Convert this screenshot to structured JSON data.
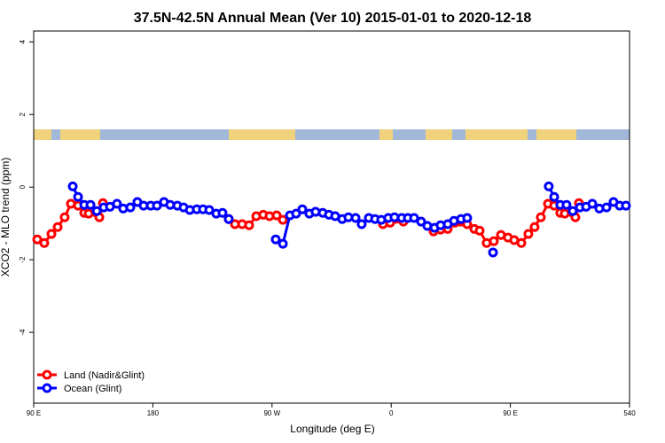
{
  "chart_data": {
    "type": "line",
    "title": "37.5N-42.5N Annual Mean (Ver 10)   2015-01-01 to 2020-12-18",
    "x_label": "Longitude (deg E)",
    "y_label": "XCO2 - MLO trend (ppm)",
    "xlim": [
      90,
      540
    ],
    "ylim": [
      -5.95,
      4.3
    ],
    "xticks": [
      {
        "value": 90,
        "label": "90 E"
      },
      180,
      {
        "value": 270,
        "label": "90 W"
      },
      {
        "value": 360,
        "label": "0"
      },
      {
        "value": 450,
        "label": "90 E"
      },
      540
    ],
    "yticks": [
      -4,
      -2,
      0,
      2,
      4
    ],
    "legend": "bottomleft",
    "series": [
      {
        "name": "Land (Nadir&Glint)",
        "color": "#ff0000",
        "x": [
          92.7,
          98.0,
          103.4,
          108.1,
          113.4,
          118.1,
          123.5,
          128.2,
          131.5,
          139.6,
          142.3,
          null,
          237.3,
          242.0,
          247.4,
          252.7,
          258.1,
          263.4,
          268.1,
          273.5,
          278.2,
          null,
          353.8,
          359.2,
          369.2,
          null,
          392.0,
          397.3,
          402.7,
          408.1,
          412.7,
          417.4,
          422.8,
          426.8,
          432.1,
          437.5,
          442.9,
          448.2,
          452.9,
          458.3,
          463.6,
          468.3,
          473.0,
          478.4,
          483.1,
          487.7,
          491.1,
          499.1,
          501.8
        ],
        "values": [
          -1.44,
          -1.54,
          -1.29,
          -1.1,
          -0.83,
          -0.46,
          -0.51,
          -0.71,
          -0.73,
          -0.83,
          -0.44,
          null,
          -0.88,
          -1.02,
          -1.02,
          -1.05,
          -0.8,
          -0.76,
          -0.8,
          -0.78,
          -0.9,
          null,
          -1.02,
          -0.98,
          -0.95,
          null,
          -1.22,
          -1.17,
          -1.15,
          -0.98,
          -0.95,
          -1.02,
          -1.15,
          -1.2,
          -1.54,
          -1.49,
          -1.32,
          -1.39,
          -1.46,
          -1.54,
          -1.29,
          -1.1,
          -0.83,
          -0.46,
          -0.51,
          -0.71,
          -0.73,
          -0.83,
          -0.44
        ]
      },
      {
        "name": "Ocean (Glint)",
        "color": "#0000ff",
        "x": [
          119.5,
          123.5,
          128.2,
          132.9,
          137.6,
          142.9,
          147.6,
          152.9,
          157.6,
          163.0,
          168.3,
          173.0,
          178.4,
          183.1,
          188.4,
          193.1,
          198.5,
          203.2,
          207.9,
          213.2,
          217.9,
          222.6,
          227.9,
          232.6,
          237.3,
          null,
          272.8,
          278.2,
          283.5,
          288.2,
          292.9,
          298.2,
          302.9,
          308.3,
          313.0,
          317.7,
          323.0,
          327.7,
          333.1,
          337.7,
          343.1,
          347.8,
          352.5,
          357.8,
          362.5,
          367.9,
          372.6,
          377.3,
          382.6,
          387.3,
          392.7,
          397.3,
          402.7,
          407.4,
          412.7,
          417.4,
          null,
          436.9,
          null,
          479.0,
          483.1,
          487.7,
          492.4,
          497.1,
          502.5,
          507.2,
          511.9,
          517.2,
          522.6,
          527.9,
          532.6,
          537.3
        ],
        "values": [
          0.02,
          -0.27,
          -0.49,
          -0.49,
          -0.66,
          -0.56,
          -0.54,
          -0.46,
          -0.59,
          -0.56,
          -0.41,
          -0.51,
          -0.51,
          -0.51,
          -0.41,
          -0.49,
          -0.51,
          -0.56,
          -0.63,
          -0.61,
          -0.61,
          -0.63,
          -0.73,
          -0.71,
          -0.88,
          null,
          -1.44,
          -1.56,
          -0.78,
          -0.73,
          -0.61,
          -0.73,
          -0.68,
          -0.71,
          -0.76,
          -0.8,
          -0.88,
          -0.83,
          -0.85,
          -1.02,
          -0.85,
          -0.88,
          -0.9,
          -0.85,
          -0.83,
          -0.85,
          -0.85,
          -0.85,
          -0.95,
          -1.07,
          -1.12,
          -1.05,
          -1.02,
          -0.93,
          -0.88,
          -0.85,
          null,
          -1.8,
          null,
          0.02,
          -0.27,
          -0.49,
          -0.49,
          -0.66,
          -0.56,
          -0.54,
          -0.46,
          -0.59,
          -0.56,
          -0.41,
          -0.51,
          -0.51
        ]
      }
    ]
  }
}
